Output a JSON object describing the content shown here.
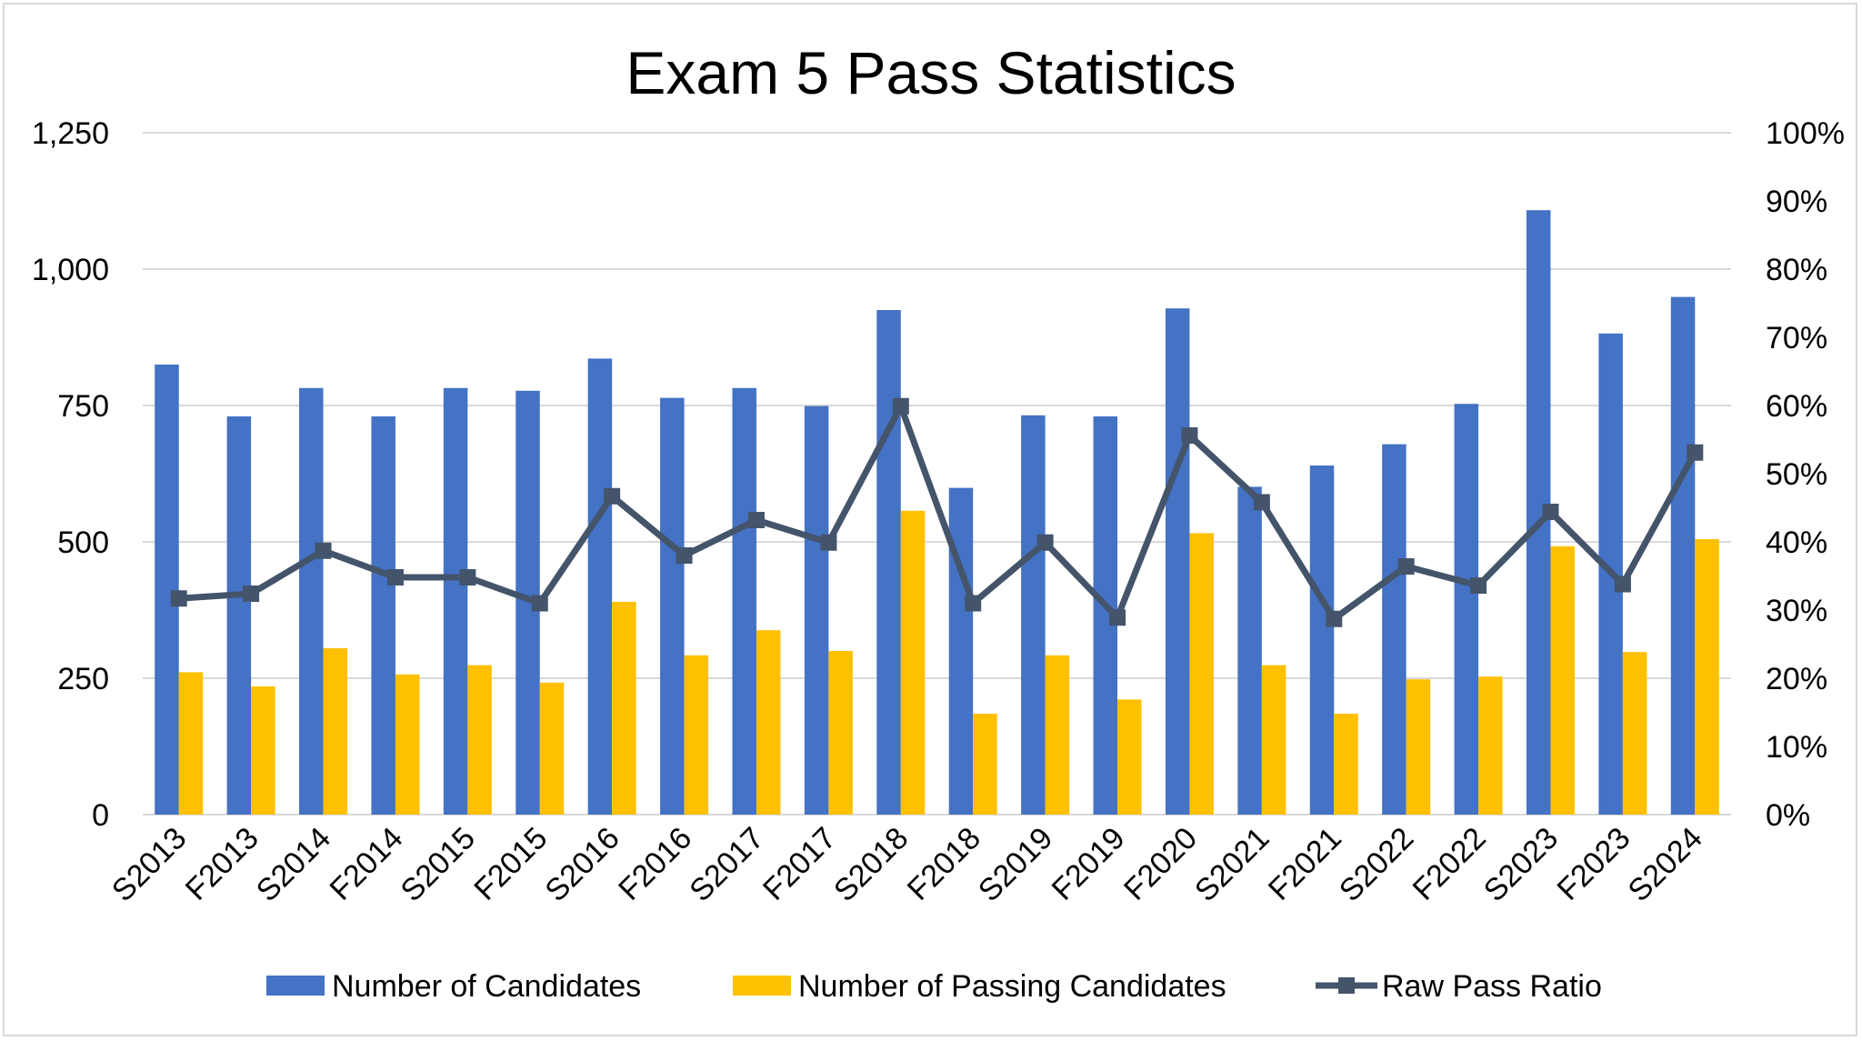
{
  "chart_data": {
    "type": "bar+line",
    "title": "Exam 5 Pass Statistics",
    "categories": [
      "S2013",
      "F2013",
      "S2014",
      "F2014",
      "S2015",
      "F2015",
      "S2016",
      "F2016",
      "S2017",
      "F2017",
      "S2018",
      "F2018",
      "S2019",
      "F2019",
      "F2020",
      "S2021",
      "F2021",
      "S2022",
      "F2022",
      "S2023",
      "F2023",
      "S2024"
    ],
    "y_left": {
      "range": [
        0,
        1250
      ],
      "ticks": [
        "0",
        "250",
        "500",
        "750",
        "1,000",
        "1,250"
      ],
      "tick_values": [
        0,
        250,
        500,
        750,
        1000,
        1250
      ]
    },
    "y_right": {
      "range": [
        0,
        100
      ],
      "unit": "%",
      "ticks": [
        "0%",
        "10%",
        "20%",
        "30%",
        "40%",
        "50%",
        "60%",
        "70%",
        "80%",
        "90%",
        "100%"
      ],
      "tick_values": [
        0,
        10,
        20,
        30,
        40,
        50,
        60,
        70,
        80,
        90,
        100
      ]
    },
    "grid": true,
    "legend_position": "bottom",
    "series": [
      {
        "name": "Number of Candidates",
        "type": "bar",
        "axis": "left",
        "color": "#4472c4",
        "values": [
          825,
          730,
          782,
          730,
          782,
          777,
          836,
          764,
          782,
          749,
          925,
          599,
          732,
          730,
          928,
          601,
          640,
          679,
          753,
          1108,
          882,
          949
        ]
      },
      {
        "name": "Number of Passing Candidates",
        "type": "bar",
        "axis": "left",
        "color": "#ffc000",
        "values": [
          261,
          235,
          305,
          257,
          274,
          242,
          390,
          292,
          338,
          300,
          557,
          185,
          292,
          211,
          516,
          274,
          185,
          248,
          253,
          492,
          298,
          505
        ]
      },
      {
        "name": "Raw Pass Ratio",
        "type": "line",
        "axis": "right",
        "color": "#44546a",
        "marker": "square",
        "values": [
          31.7,
          32.4,
          38.7,
          34.8,
          34.8,
          31.0,
          46.7,
          38.0,
          43.2,
          39.9,
          59.9,
          31.0,
          39.9,
          28.9,
          55.6,
          45.8,
          28.7,
          36.4,
          33.6,
          44.4,
          33.8,
          53.1
        ]
      }
    ]
  }
}
